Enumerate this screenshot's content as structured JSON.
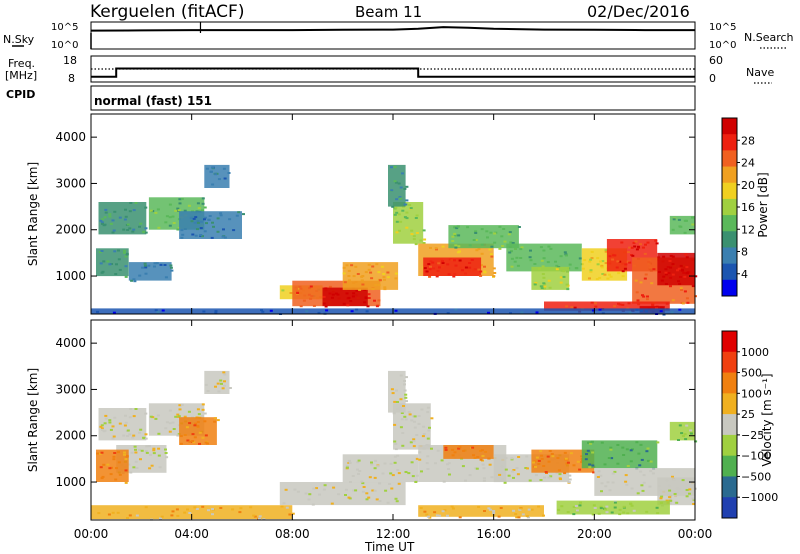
{
  "header": {
    "station": "Kerguelen (fitACF)",
    "beam": "Beam 11",
    "date": "02/Dec/2016"
  },
  "panel_labels": {
    "nsky": "N.Sky",
    "freq": "Freq.",
    "freq_unit": "[MHz]",
    "cpid": "CPID",
    "nsearch": "N.Search",
    "nave": "Nave",
    "mode": "normal (fast) 151"
  },
  "chart_data": [
    {
      "type": "line",
      "name": "noise",
      "left_ticks": [
        "10^5",
        "10^0"
      ],
      "right_ticks": [
        "10^5",
        "10^0"
      ],
      "x": [
        "00:00",
        "02:00",
        "04:00",
        "06:00",
        "08:00",
        "10:00",
        "12:00",
        "13:00",
        "14:00",
        "15:00",
        "16:00",
        "18:00",
        "20:00",
        "22:00",
        "24:00"
      ],
      "nsky_log": [
        3.4,
        3.45,
        3.5,
        3.5,
        3.5,
        3.55,
        3.6,
        3.75,
        4.05,
        3.95,
        3.75,
        3.6,
        3.55,
        3.5,
        3.5
      ]
    },
    {
      "type": "line",
      "name": "frequency",
      "left_ticks": [
        "18",
        "8"
      ],
      "right_ticks": [
        "60",
        "0"
      ],
      "freq_mhz": [
        [
          0,
          10
        ],
        [
          1,
          10
        ],
        [
          1,
          13.2
        ],
        [
          13,
          13.2
        ],
        [
          13,
          10
        ],
        [
          24,
          10
        ]
      ],
      "nave": [
        [
          0,
          30
        ],
        [
          24,
          30
        ]
      ]
    },
    {
      "type": "heatmap",
      "name": "power",
      "ylabel": "Slant Range [km]",
      "yticks": [
        1000,
        2000,
        3000,
        4000
      ],
      "ylim": [
        180,
        4500
      ],
      "xlim": [
        0,
        24
      ],
      "colorbar_label": "Power [dB]",
      "colorbar_ticks": [
        "28",
        "24",
        "20",
        "16",
        "12",
        "8",
        "4"
      ],
      "colors": [
        "#0000ee",
        "#1b55b0",
        "#3a7fb0",
        "#3a9070",
        "#5ab85a",
        "#a0d040",
        "#f0d020",
        "#f0a020",
        "#f06020",
        "#ee2010",
        "#d00000"
      ],
      "regions": [
        {
          "x0": 0.3,
          "x1": 2.2,
          "y0": 1900,
          "y1": 2600,
          "level": 3
        },
        {
          "x0": 2.3,
          "x1": 4.5,
          "y0": 2000,
          "y1": 2700,
          "level": 4
        },
        {
          "x0": 1.5,
          "x1": 3.2,
          "y0": 900,
          "y1": 1300,
          "level": 2
        },
        {
          "x0": 0.2,
          "x1": 1.5,
          "y0": 1000,
          "y1": 1600,
          "level": 3
        },
        {
          "x0": 3.5,
          "x1": 6.0,
          "y0": 1800,
          "y1": 2400,
          "level": 2
        },
        {
          "x0": 7.5,
          "x1": 9.2,
          "y0": 500,
          "y1": 800,
          "level": 6
        },
        {
          "x0": 8.0,
          "x1": 11.5,
          "y0": 350,
          "y1": 900,
          "level": 8
        },
        {
          "x0": 9.2,
          "x1": 11.0,
          "y0": 350,
          "y1": 750,
          "level": 10
        },
        {
          "x0": 10.0,
          "x1": 12.2,
          "y0": 700,
          "y1": 1300,
          "level": 7
        },
        {
          "x0": 12.0,
          "x1": 13.2,
          "y0": 1700,
          "y1": 2600,
          "level": 5
        },
        {
          "x0": 13.0,
          "x1": 16.0,
          "y0": 1000,
          "y1": 1700,
          "level": 7
        },
        {
          "x0": 13.2,
          "x1": 15.5,
          "y0": 1000,
          "y1": 1400,
          "level": 9
        },
        {
          "x0": 14.2,
          "x1": 17.0,
          "y0": 1600,
          "y1": 2100,
          "level": 4
        },
        {
          "x0": 16.5,
          "x1": 19.5,
          "y0": 1100,
          "y1": 1700,
          "level": 4
        },
        {
          "x0": 17.5,
          "x1": 19.0,
          "y0": 700,
          "y1": 1200,
          "level": 5
        },
        {
          "x0": 19.5,
          "x1": 21.3,
          "y0": 900,
          "y1": 1600,
          "level": 6
        },
        {
          "x0": 20.5,
          "x1": 22.5,
          "y0": 1100,
          "y1": 1800,
          "level": 9
        },
        {
          "x0": 21.5,
          "x1": 24.0,
          "y0": 400,
          "y1": 1400,
          "level": 8
        },
        {
          "x0": 22.5,
          "x1": 24.0,
          "y0": 800,
          "y1": 1500,
          "level": 10
        },
        {
          "x0": 18.0,
          "x1": 23.0,
          "y0": 250,
          "y1": 450,
          "level": 9
        },
        {
          "x0": 21.8,
          "x1": 22.8,
          "y0": 200,
          "y1": 350,
          "level": 10
        },
        {
          "x0": 23.0,
          "x1": 24.0,
          "y0": 1900,
          "y1": 2300,
          "level": 4
        },
        {
          "x0": 0.0,
          "x1": 24.0,
          "y0": 190,
          "y1": 300,
          "level": 1
        },
        {
          "x0": 4.5,
          "x1": 5.5,
          "y0": 2900,
          "y1": 3400,
          "level": 2
        },
        {
          "x0": 11.8,
          "x1": 12.5,
          "y0": 2500,
          "y1": 3400,
          "level": 3
        }
      ]
    },
    {
      "type": "heatmap",
      "name": "velocity",
      "ylabel": "Slant Range [km]",
      "yticks": [
        1000,
        2000,
        3000,
        4000
      ],
      "ylim": [
        180,
        4500
      ],
      "xlim": [
        0,
        24
      ],
      "xlabel": "Time UT",
      "xticks": [
        "00:00",
        "04:00",
        "08:00",
        "12:00",
        "16:00",
        "20:00",
        "00:00"
      ],
      "colorbar_label": "Velocity [m s⁻¹]",
      "colorbar_ticks": [
        "1000",
        "500",
        "100",
        "25",
        "−25",
        "−100",
        "−500",
        "−1000"
      ],
      "colors": [
        "#e00000",
        "#f04010",
        "#f08010",
        "#f0b020",
        "#c8c8c0",
        "#a0d040",
        "#50b050",
        "#2a6a90",
        "#2040b0"
      ],
      "regions": [
        {
          "x0": 0.3,
          "x1": 2.2,
          "y0": 1900,
          "y1": 2600,
          "level": 4
        },
        {
          "x0": 2.3,
          "x1": 4.5,
          "y0": 2000,
          "y1": 2700,
          "level": 4
        },
        {
          "x0": 1.0,
          "x1": 3.0,
          "y0": 1200,
          "y1": 1800,
          "level": 4
        },
        {
          "x0": 0.2,
          "x1": 1.5,
          "y0": 1000,
          "y1": 1700,
          "level": 2
        },
        {
          "x0": 3.5,
          "x1": 5.0,
          "y0": 1800,
          "y1": 2400,
          "level": 2
        },
        {
          "x0": 7.5,
          "x1": 12.5,
          "y0": 500,
          "y1": 1000,
          "level": 4
        },
        {
          "x0": 10.0,
          "x1": 13.0,
          "y0": 1000,
          "y1": 1600,
          "level": 4
        },
        {
          "x0": 12.0,
          "x1": 13.5,
          "y0": 1700,
          "y1": 2700,
          "level": 4
        },
        {
          "x0": 13.0,
          "x1": 16.5,
          "y0": 1000,
          "y1": 1800,
          "level": 4
        },
        {
          "x0": 14.0,
          "x1": 16.0,
          "y0": 1500,
          "y1": 1800,
          "level": 2
        },
        {
          "x0": 16.0,
          "x1": 19.0,
          "y0": 1000,
          "y1": 1600,
          "level": 4
        },
        {
          "x0": 17.5,
          "x1": 20.0,
          "y0": 1200,
          "y1": 1700,
          "level": 2
        },
        {
          "x0": 19.5,
          "x1": 22.5,
          "y0": 1300,
          "y1": 1900,
          "level": 6
        },
        {
          "x0": 20.0,
          "x1": 24.0,
          "y0": 700,
          "y1": 1300,
          "level": 4
        },
        {
          "x0": 22.5,
          "x1": 24.0,
          "y0": 500,
          "y1": 1100,
          "level": 4
        },
        {
          "x0": 18.5,
          "x1": 23.0,
          "y0": 300,
          "y1": 600,
          "level": 5
        },
        {
          "x0": 0.0,
          "x1": 8.0,
          "y0": 200,
          "y1": 500,
          "level": 3
        },
        {
          "x0": 13.0,
          "x1": 18.0,
          "y0": 250,
          "y1": 500,
          "level": 3
        },
        {
          "x0": 4.5,
          "x1": 5.5,
          "y0": 2900,
          "y1": 3400,
          "level": 4
        },
        {
          "x0": 11.8,
          "x1": 12.5,
          "y0": 2500,
          "y1": 3400,
          "level": 4
        },
        {
          "x0": 23.0,
          "x1": 24.0,
          "y0": 1900,
          "y1": 2300,
          "level": 5
        }
      ]
    }
  ]
}
